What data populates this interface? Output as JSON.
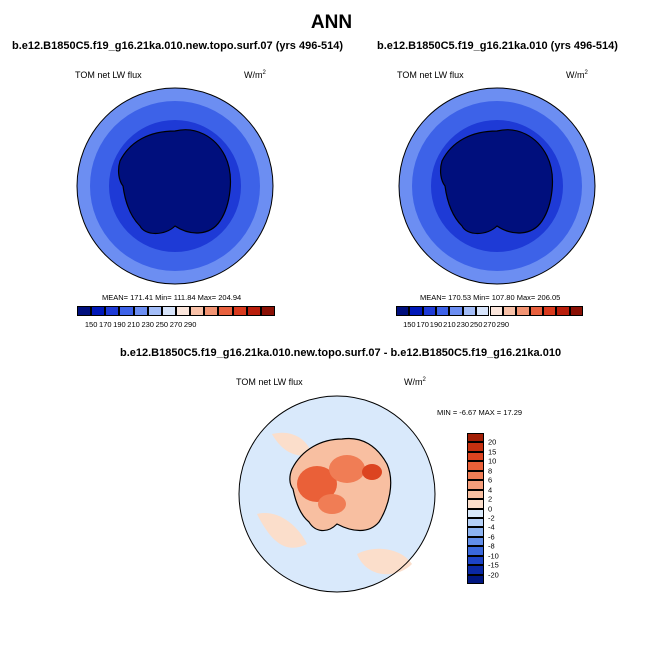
{
  "figure_title": "ANN",
  "panels": [
    {
      "title": "b.e12.B1850C5.f19_g16.21ka.010.new.topo.surf.07 (yrs 496-514)",
      "variable": "TOM net LW flux",
      "units": "W/m",
      "units_sup": "2",
      "stats": "MEAN= 171.41  Min= 111.84  Max= 204.94",
      "colorbar_labels": [
        "150",
        "170",
        "190",
        "210",
        "230",
        "250",
        "270",
        "290"
      ],
      "colorbar_colors": [
        "#000f7d",
        "#0018b8",
        "#1e3ad6",
        "#3d62e8",
        "#6c8ef2",
        "#a3bdf8",
        "#d7e4fb",
        "#fbe6dc",
        "#f8c1a8",
        "#f29473",
        "#e8613f",
        "#d83a1e",
        "#b91e0c",
        "#8a1005"
      ]
    },
    {
      "title": "b.e12.B1850C5.f19_g16.21ka.010 (yrs 496-514)",
      "variable": "TOM net LW flux",
      "units": "W/m",
      "units_sup": "2",
      "stats": "MEAN= 170.53  Min= 107.80  Max= 206.05",
      "colorbar_labels": [
        "150",
        "170",
        "190",
        "210",
        "230",
        "250",
        "270",
        "290"
      ],
      "colorbar_colors": [
        "#000f7d",
        "#0018b8",
        "#1e3ad6",
        "#3d62e8",
        "#6c8ef2",
        "#a3bdf8",
        "#d7e4fb",
        "#fbe6dc",
        "#f8c1a8",
        "#f29473",
        "#e8613f",
        "#d83a1e",
        "#b91e0c",
        "#8a1005"
      ]
    },
    {
      "title": "b.e12.B1850C5.f19_g16.21ka.010.new.topo.surf.07 - b.e12.B1850C5.f19_g16.21ka.010",
      "variable": "TOM net LW flux",
      "units": "W/m",
      "units_sup": "2",
      "stats": "MIN =  -6.67 MAX =  17.29",
      "colorbar_labels": [
        "20",
        "15",
        "10",
        "8",
        "6",
        "4",
        "2",
        "0",
        "-2",
        "-4",
        "-6",
        "-8",
        "-10",
        "-15",
        "-20"
      ],
      "colorbar_colors": [
        "#a21e05",
        "#c53010",
        "#dc4420",
        "#ea6038",
        "#f07d55",
        "#f59e7b",
        "#f8bfa1",
        "#fbdecb",
        "#d9e9fb",
        "#b5d0f7",
        "#8db3f1",
        "#628ee9",
        "#3a68dc",
        "#1c43c6",
        "#0a28a4",
        "#001680"
      ]
    }
  ]
}
